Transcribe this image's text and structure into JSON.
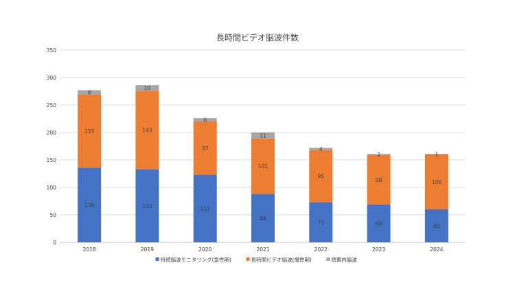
{
  "chart_data": {
    "type": "bar",
    "stacked": true,
    "title": "長時間ビデオ脳波件数",
    "xlabel": "",
    "ylabel": "",
    "categories": [
      "2018",
      "2019",
      "2020",
      "2021",
      "2022",
      "2023",
      "2024"
    ],
    "series": [
      {
        "name": "持続脳波モニタリング(急性期)",
        "color": "#4472c4",
        "values": [
          136,
          133,
          123,
          88,
          73,
          69,
          60
        ]
      },
      {
        "name": "長時間ビデオ脳波(慢性期)",
        "color": "#ed7d31",
        "values": [
          133,
          143,
          97,
          101,
          95,
          90,
          100
        ]
      },
      {
        "name": "頭蓋内脳波",
        "color": "#a5a5a5",
        "values": [
          8,
          10,
          6,
          11,
          4,
          2,
          1
        ]
      }
    ],
    "ylim": [
      0,
      350
    ],
    "yticks": [
      0,
      50,
      100,
      150,
      200,
      250,
      300,
      350
    ],
    "grid": true,
    "legend": "bottom",
    "data_labels": true
  }
}
